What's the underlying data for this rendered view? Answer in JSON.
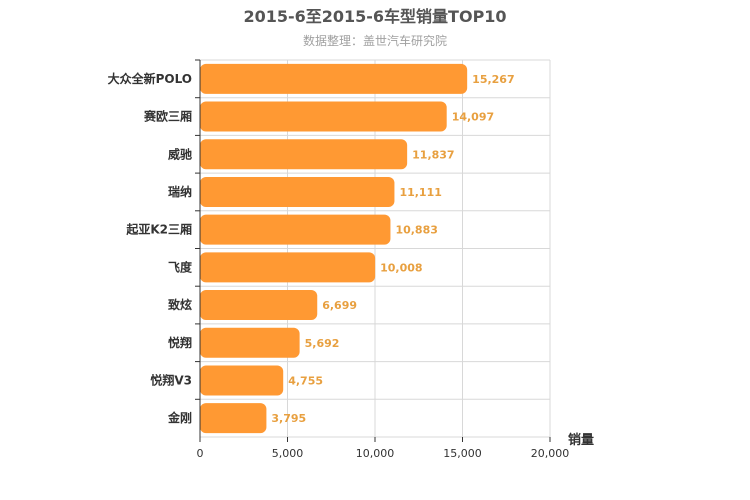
{
  "chart_data": {
    "type": "bar",
    "orientation": "horizontal",
    "title": "2015-6至2015-6车型销量TOP10",
    "subtitle": "数据整理：盖世汽车研究院",
    "categories": [
      "大众全新POLO",
      "赛欧三厢",
      "威驰",
      "瑞纳",
      "起亚K2三厢",
      "飞度",
      "致炫",
      "悦翔",
      "悦翔V3",
      "金刚"
    ],
    "values": [
      15267,
      14097,
      11837,
      11111,
      10883,
      10008,
      6699,
      5692,
      4755,
      3795
    ],
    "value_labels": [
      "15,267",
      "14,097",
      "11,837",
      "11,111",
      "10,883",
      "10,008",
      "6,699",
      "5,692",
      "4,755",
      "3,795"
    ],
    "xlabel": "销量",
    "ylabel": "",
    "xlim": [
      0,
      20000
    ],
    "ticks": [
      0,
      5000,
      10000,
      15000,
      20000
    ],
    "tick_labels": [
      "0",
      "5,000",
      "10,000",
      "15,000",
      "20,000"
    ],
    "grid": true,
    "bar_color": "#ff9933",
    "label_color": "#e8a040"
  }
}
